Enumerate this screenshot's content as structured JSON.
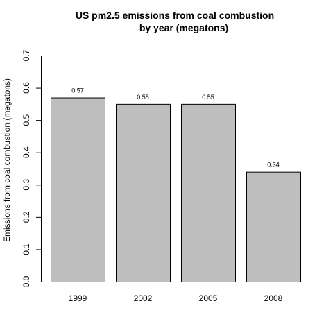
{
  "chart_data": {
    "type": "bar",
    "title_lines": [
      "US pm2.5 emissions from coal combustion",
      "by year (megatons)"
    ],
    "xlabel": "",
    "ylabel": "Emissions from coal combustion (megatons)",
    "categories": [
      "1999",
      "2002",
      "2005",
      "2008"
    ],
    "values": [
      0.57,
      0.55,
      0.55,
      0.34
    ],
    "data_labels": [
      "0.57",
      "0.55",
      "0.55",
      "0.34"
    ],
    "yticks": [
      0.0,
      0.1,
      0.2,
      0.3,
      0.4,
      0.5,
      0.6,
      0.7
    ],
    "ytick_labels": [
      "0.0",
      "0.1",
      "0.2",
      "0.3",
      "0.4",
      "0.5",
      "0.6",
      "0.7"
    ],
    "ylim": [
      0,
      0.7
    ],
    "bar_color": "#bebebe",
    "grid": false
  }
}
